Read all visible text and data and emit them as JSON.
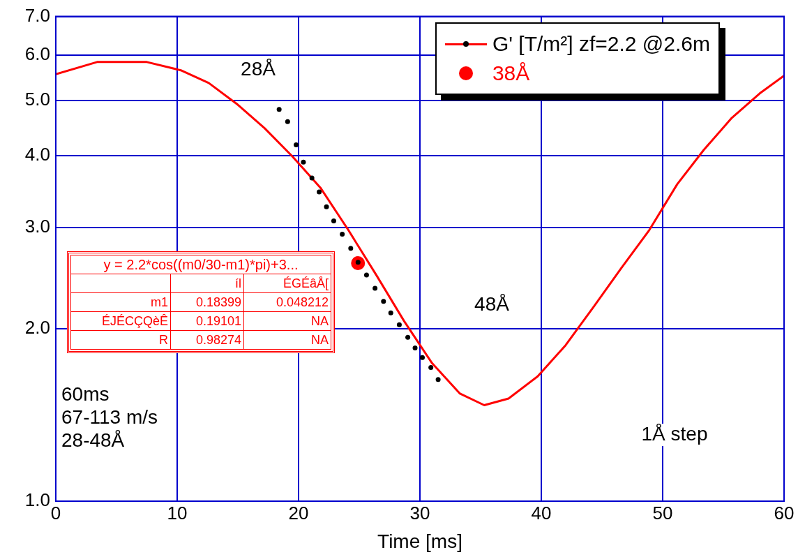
{
  "chart_data": {
    "type": "line",
    "xlabel": "Time [ms]",
    "xlim": [
      0,
      60
    ],
    "xticks": [
      0,
      10,
      20,
      30,
      40,
      50,
      60
    ],
    "ylim": [
      1,
      7
    ],
    "yticks": [
      {
        "value": 1,
        "label": "1.0"
      },
      {
        "value": 2,
        "label": "2.0"
      },
      {
        "value": 3,
        "label": "3.0"
      },
      {
        "value": 4,
        "label": "4.0"
      },
      {
        "value": 5,
        "label": "5.0"
      },
      {
        "value": 6,
        "label": "6.0"
      },
      {
        "value": 7,
        "label": "7.0"
      }
    ],
    "log": "y",
    "grid": true,
    "legend": "top right",
    "series": [
      {
        "name": "G' [T/m²] zf=2.2 @2.6m",
        "type": "scatter",
        "color": "#000000",
        "marker": "circle",
        "x": [
          18.4,
          19.1,
          19.8,
          20.4,
          21.1,
          21.7,
          22.3,
          22.9,
          23.6,
          24.3,
          24.9,
          25.6,
          26.3,
          27.0,
          27.6,
          28.3,
          29.0,
          29.6,
          30.2,
          30.9,
          31.5
        ],
        "values": [
          4.82,
          4.59,
          4.18,
          3.9,
          3.66,
          3.46,
          3.26,
          3.08,
          2.92,
          2.76,
          2.61,
          2.48,
          2.35,
          2.23,
          2.13,
          2.03,
          1.93,
          1.85,
          1.78,
          1.71,
          1.63
        ]
      },
      {
        "color": "#ff0000",
        "marker": "none",
        "x": [
          0,
          3.4,
          7.5,
          10.3,
          12.6,
          14.9,
          17.2,
          19.5,
          21.8,
          24.1,
          26.4,
          28.7,
          31.0,
          33.3,
          35.3,
          37.3,
          39.7,
          42.0,
          44.3,
          46.6,
          48.9,
          51.2,
          53.4,
          55.7,
          58.0,
          60
        ],
        "values": [
          5.55,
          5.83,
          5.83,
          5.64,
          5.36,
          4.93,
          4.47,
          3.99,
          3.52,
          2.97,
          2.48,
          2.06,
          1.74,
          1.54,
          1.47,
          1.51,
          1.65,
          1.87,
          2.18,
          2.55,
          2.97,
          3.57,
          4.1,
          4.66,
          5.14,
          5.52
        ]
      },
      {
        "name": "38Å",
        "type": "scatter",
        "color": "#ff0000",
        "marker": "circle",
        "x": [
          24.9
        ],
        "values": [
          2.6
        ]
      }
    ],
    "annotations": [
      "28Å",
      "48Å",
      "60ms\n67-113 m/s\n28-48Å",
      "1Å step",
      "y = 2.2*cos((m0/30-m1)*pi)+3...",
      "íl",
      "ÉGÉâÅ[",
      "m1",
      "0.18399",
      "0.048212",
      "ÉJÉCÇQèÊ",
      "0.19101",
      "NA",
      "R",
      "0.98274",
      "NA"
    ]
  }
}
